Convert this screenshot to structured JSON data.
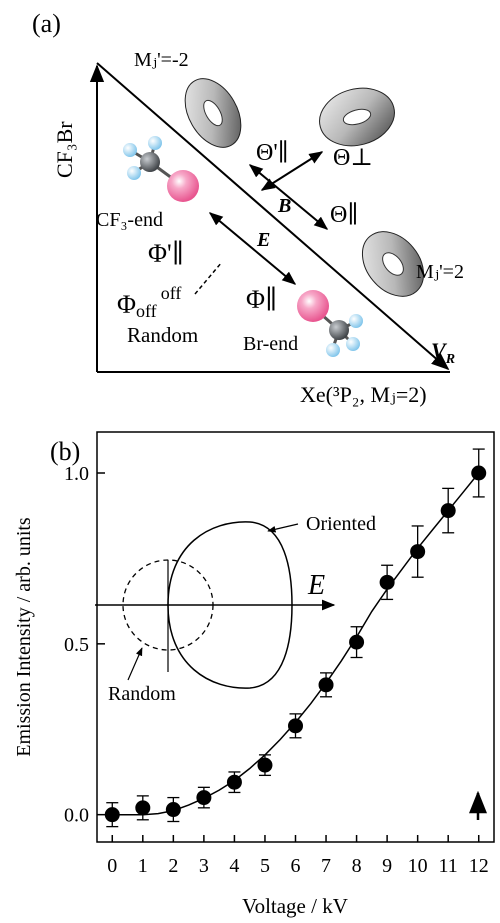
{
  "panel_a": {
    "label": "(a)",
    "y_axis_label": "CF₃Br",
    "x_axis_label": "Xe(³P₂, Mⱼ=2)",
    "vector_vr": "V",
    "vector_vr_sub": "R",
    "mj_minus": "Mⱼ'=-2",
    "mj_plus": "Mⱼ'=2",
    "theta_par_prime": "Θ'∥",
    "theta_perp": "Θ⊥",
    "theta_par": "Θ∥",
    "field_b": "B",
    "field_e": "E",
    "phi_par_prime": "Φ'∥",
    "phi_par": "Φ∥",
    "phi_off": "Φ",
    "phi_off_sub": "off",
    "phi_off_sup": "off",
    "random_label": "Random",
    "cf3_end": "CF₃-end",
    "br_end": "Br-end",
    "colors": {
      "bromine": "#f7a8c8",
      "carbon": "#5a6066",
      "fluorine": "#9fd3f0"
    }
  },
  "panel_b": {
    "label": "(b)",
    "oriented_label": "Oriented",
    "random_label": "Random",
    "field_label": "E"
  },
  "chart_data": {
    "type": "scatter",
    "xlabel": "Voltage / kV",
    "ylabel": "Emission Intensity / arb. units",
    "xlim": [
      -0.5,
      12.5
    ],
    "ylim": [
      -0.08,
      1.12
    ],
    "x_ticks": [
      0,
      1,
      2,
      3,
      4,
      5,
      6,
      7,
      8,
      9,
      10,
      11,
      12
    ],
    "y_ticks": [
      0.0,
      0.5,
      1.0
    ],
    "y_tick_labels": [
      "0.0",
      "0.5",
      "1.0"
    ],
    "grid": false,
    "series": [
      {
        "x": [
          0,
          1,
          2,
          3,
          4,
          5,
          6,
          7,
          8,
          9,
          10,
          11,
          12
        ],
        "y": [
          0.0,
          0.02,
          0.015,
          0.05,
          0.095,
          0.145,
          0.26,
          0.38,
          0.505,
          0.68,
          0.77,
          0.89,
          1.0
        ],
        "err": [
          0.035,
          0.035,
          0.035,
          0.03,
          0.03,
          0.03,
          0.035,
          0.035,
          0.045,
          0.05,
          0.075,
          0.065,
          0.07
        ]
      }
    ],
    "fit_curve": {
      "x": [
        0,
        0.5,
        1,
        1.5,
        2,
        2.5,
        3,
        3.5,
        4,
        4.5,
        5,
        5.5,
        6,
        6.5,
        7,
        7.5,
        8,
        8.5,
        9,
        9.5,
        10,
        10.5,
        11,
        11.5,
        12
      ],
      "y": [
        0,
        0,
        0,
        0.003,
        0.012,
        0.028,
        0.048,
        0.072,
        0.1,
        0.135,
        0.175,
        0.22,
        0.27,
        0.325,
        0.385,
        0.45,
        0.52,
        0.595,
        0.66,
        0.72,
        0.78,
        0.835,
        0.89,
        0.945,
        1.0
      ]
    }
  }
}
